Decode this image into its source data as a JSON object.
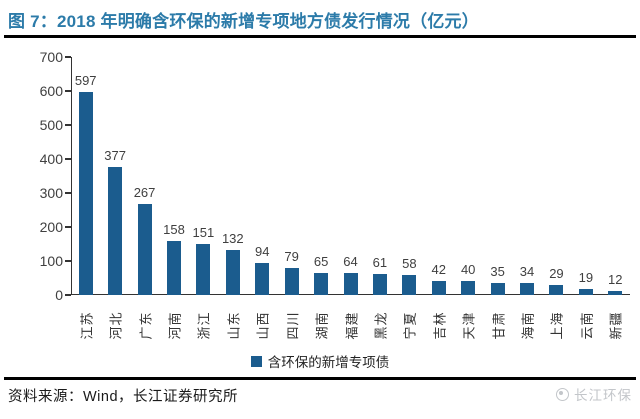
{
  "header": {
    "figure_label": "图 7："
  },
  "chart_data": {
    "type": "bar",
    "title": "图 7：2018 年明确含环保的新增专项地方债发行情况（亿元）",
    "unit": "亿元",
    "categories": [
      "江苏",
      "河北",
      "广东",
      "河南",
      "浙江",
      "山东",
      "山西",
      "四川",
      "湖南",
      "福建",
      "黑龙",
      "宁夏",
      "吉林",
      "天津",
      "甘肃",
      "海南",
      "上海",
      "云南",
      "新疆"
    ],
    "values": [
      597,
      377,
      267,
      158,
      151,
      132,
      94,
      79,
      65,
      64,
      61,
      58,
      42,
      40,
      35,
      34,
      29,
      19,
      12
    ],
    "legend": [
      "含环保的新增专项债"
    ],
    "legend_position": "bottom",
    "xlabel": "",
    "ylabel": "",
    "ylim": [
      0,
      700
    ],
    "yticks": [
      0,
      100,
      200,
      300,
      400,
      500,
      600,
      700
    ],
    "grid": false,
    "data_labels": true,
    "x_tick_rotation": -90
  },
  "footer": {
    "source": "资料来源：Wind，长江证券研究所",
    "watermark": "长江环保"
  },
  "colors": {
    "bar": "#1b5c8e",
    "title": "#2c7ba9",
    "axis": "#333333",
    "rule": "#000000",
    "watermark": "#c3c6ca"
  }
}
